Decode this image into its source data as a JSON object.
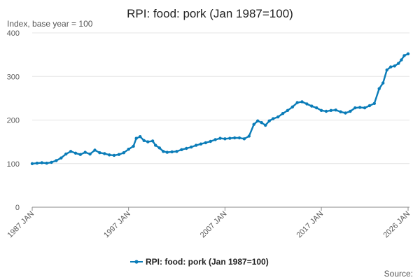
{
  "chart_data": {
    "type": "line",
    "title": "RPI: food: pork (Jan 1987=100)",
    "subtitle": "Index, base year = 100",
    "source_label": "Source:",
    "xlabel": "",
    "ylabel": "",
    "ylim": [
      0,
      400
    ],
    "xlim": [
      1987.0,
      2026.0
    ],
    "y_ticks": [
      0,
      100,
      200,
      300,
      400
    ],
    "x_ticks": [
      {
        "value": 1987.0,
        "label": "1987 JAN"
      },
      {
        "value": 1997.0,
        "label": "1997 JAN"
      },
      {
        "value": 2007.0,
        "label": "2007 JAN"
      },
      {
        "value": 2017.0,
        "label": "2017 JAN"
      },
      {
        "value": 2026.0,
        "label": "2026 JAN"
      }
    ],
    "grid": true,
    "legend": "bottom",
    "series": [
      {
        "name": "RPI: food: pork (Jan 1987=100)",
        "color": "#0a7cb8",
        "points": [
          [
            1987.0,
            100
          ],
          [
            1987.5,
            101
          ],
          [
            1988.0,
            102
          ],
          [
            1988.5,
            101
          ],
          [
            1989.0,
            103
          ],
          [
            1989.5,
            107
          ],
          [
            1990.0,
            113
          ],
          [
            1990.5,
            122
          ],
          [
            1991.0,
            128
          ],
          [
            1991.5,
            124
          ],
          [
            1992.0,
            121
          ],
          [
            1992.5,
            126
          ],
          [
            1993.0,
            122
          ],
          [
            1993.5,
            131
          ],
          [
            1994.0,
            125
          ],
          [
            1994.5,
            123
          ],
          [
            1995.0,
            120
          ],
          [
            1995.5,
            119
          ],
          [
            1996.0,
            121
          ],
          [
            1996.5,
            125
          ],
          [
            1997.0,
            133
          ],
          [
            1997.5,
            140
          ],
          [
            1997.8,
            158
          ],
          [
            1998.2,
            162
          ],
          [
            1998.6,
            153
          ],
          [
            1999.0,
            150
          ],
          [
            1999.5,
            152
          ],
          [
            1999.8,
            142
          ],
          [
            2000.2,
            136
          ],
          [
            2000.6,
            128
          ],
          [
            2001.0,
            126
          ],
          [
            2001.5,
            127
          ],
          [
            2002.0,
            128
          ],
          [
            2002.5,
            132
          ],
          [
            2003.0,
            135
          ],
          [
            2003.5,
            138
          ],
          [
            2004.0,
            142
          ],
          [
            2004.5,
            145
          ],
          [
            2005.0,
            148
          ],
          [
            2005.5,
            151
          ],
          [
            2006.0,
            155
          ],
          [
            2006.5,
            158
          ],
          [
            2007.0,
            157
          ],
          [
            2007.5,
            158
          ],
          [
            2008.0,
            159
          ],
          [
            2008.5,
            159
          ],
          [
            2009.0,
            157
          ],
          [
            2009.5,
            163
          ],
          [
            2010.0,
            190
          ],
          [
            2010.4,
            198
          ],
          [
            2010.8,
            194
          ],
          [
            2011.2,
            188
          ],
          [
            2011.6,
            198
          ],
          [
            2012.0,
            203
          ],
          [
            2012.5,
            207
          ],
          [
            2013.0,
            215
          ],
          [
            2013.5,
            222
          ],
          [
            2014.0,
            230
          ],
          [
            2014.5,
            240
          ],
          [
            2015.0,
            242
          ],
          [
            2015.5,
            237
          ],
          [
            2016.0,
            232
          ],
          [
            2016.5,
            228
          ],
          [
            2017.0,
            222
          ],
          [
            2017.5,
            220
          ],
          [
            2018.0,
            222
          ],
          [
            2018.5,
            223
          ],
          [
            2019.0,
            219
          ],
          [
            2019.5,
            216
          ],
          [
            2020.0,
            220
          ],
          [
            2020.5,
            228
          ],
          [
            2021.0,
            229
          ],
          [
            2021.5,
            228
          ],
          [
            2022.0,
            233
          ],
          [
            2022.5,
            238
          ],
          [
            2023.0,
            272
          ],
          [
            2023.4,
            285
          ],
          [
            2023.8,
            315
          ],
          [
            2024.2,
            322
          ],
          [
            2024.6,
            324
          ],
          [
            2025.0,
            330
          ],
          [
            2025.3,
            338
          ],
          [
            2025.6,
            348
          ],
          [
            2026.0,
            352
          ]
        ]
      }
    ]
  }
}
